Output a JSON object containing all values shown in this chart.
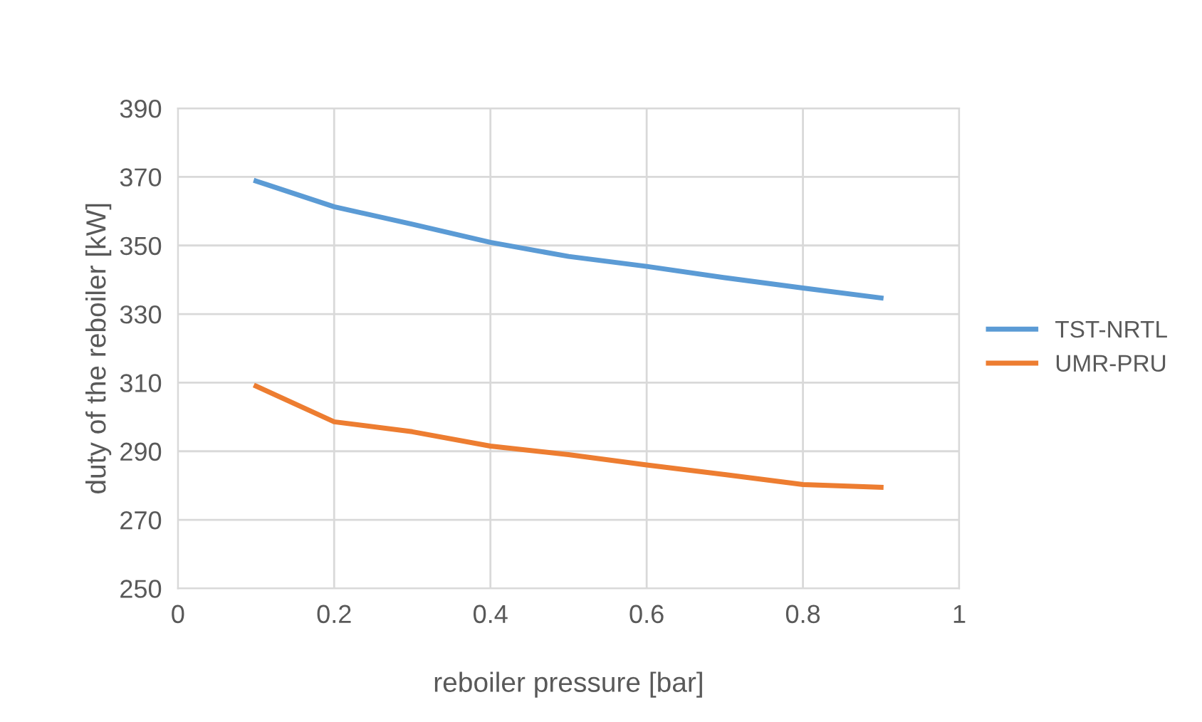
{
  "chart_data": {
    "type": "line",
    "xlabel": "reboiler pressure [bar]",
    "ylabel": "duty of the reboiler [kW]",
    "x": [
      0.1,
      0.2,
      0.3,
      0.4,
      0.5,
      0.6,
      0.7,
      0.8,
      0.9
    ],
    "series": [
      {
        "name": "TST-NRTL",
        "color": "#5b9bd5",
        "values": [
          368.8,
          361.3,
          356.2,
          350.9,
          346.8,
          343.9,
          340.6,
          337.6,
          334.7
        ]
      },
      {
        "name": "UMR-PRU",
        "color": "#ed7d31",
        "values": [
          309,
          298.6,
          295.7,
          291.5,
          289,
          286,
          283.2,
          280.3,
          279.5
        ]
      }
    ],
    "xlim": [
      0,
      1
    ],
    "xticks": [
      0,
      0.2,
      0.4,
      0.6,
      0.8,
      1
    ],
    "ylim": [
      250,
      390
    ],
    "yticks": [
      250,
      270,
      290,
      310,
      330,
      350,
      370,
      390
    ],
    "grid": true,
    "legend": "right",
    "marker": "none",
    "line_style": "solid"
  }
}
